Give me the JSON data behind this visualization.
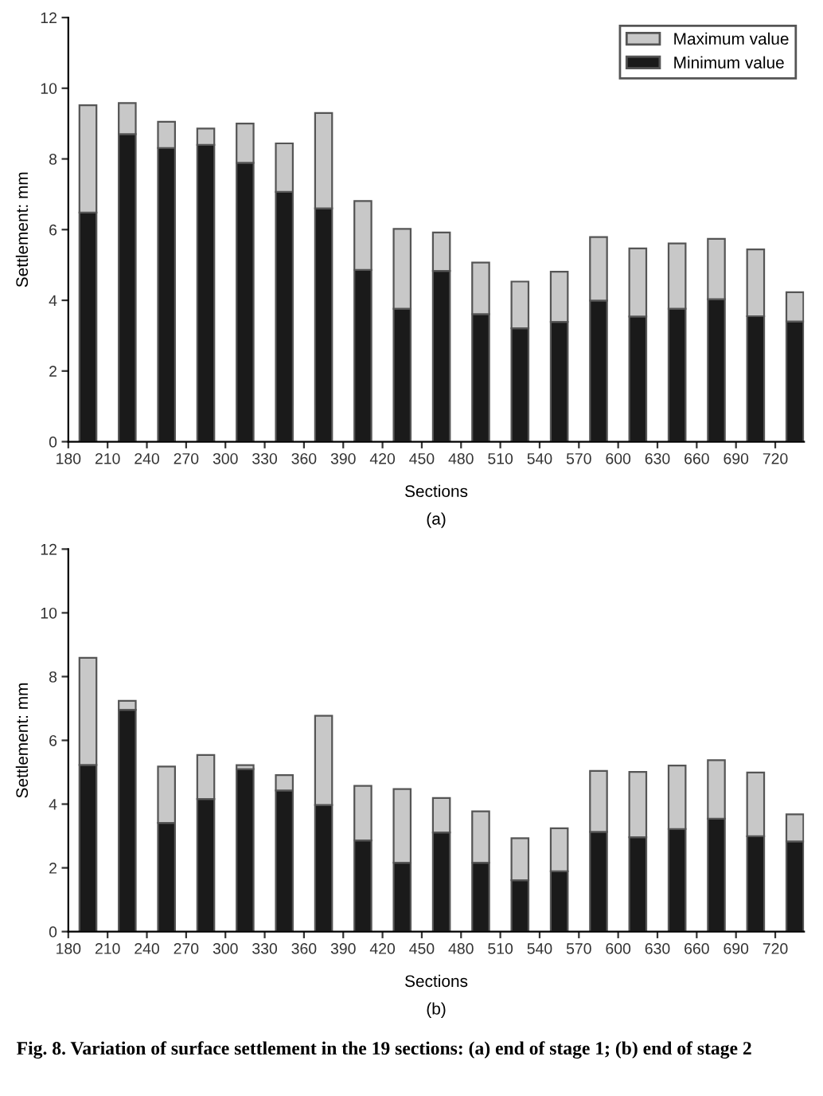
{
  "chart_data": [
    {
      "type": "bar",
      "stacked": true,
      "xlabel": "Sections",
      "ylabel": "Settlement: mm",
      "x": [
        195,
        225,
        255,
        285,
        315,
        345,
        375,
        405,
        435,
        465,
        495,
        525,
        555,
        585,
        615,
        645,
        675,
        705,
        735
      ],
      "series": [
        {
          "name": "Minimum value",
          "color": "#1a1a1a",
          "values": [
            6.48,
            8.7,
            8.31,
            8.4,
            7.89,
            7.07,
            6.6,
            4.86,
            3.76,
            4.83,
            3.61,
            3.21,
            3.39,
            3.99,
            3.54,
            3.76,
            4.03,
            3.55,
            3.4
          ]
        },
        {
          "name": "Maximum value",
          "color": "#c8c8c8",
          "values": [
            3.04,
            0.88,
            0.74,
            0.46,
            1.11,
            1.37,
            2.7,
            1.95,
            2.26,
            1.09,
            1.46,
            1.32,
            1.42,
            1.8,
            1.93,
            1.85,
            1.71,
            1.89,
            0.83
          ]
        }
      ],
      "xlim": [
        180,
        742
      ],
      "xticks": [
        180,
        210,
        240,
        270,
        300,
        330,
        360,
        390,
        420,
        450,
        480,
        510,
        540,
        570,
        600,
        630,
        660,
        690,
        720
      ],
      "ylim": [
        0,
        12
      ],
      "yticks": [
        0,
        2,
        4,
        6,
        8,
        10,
        12
      ],
      "grid": false,
      "legend": "top right",
      "annotations": [
        "(a)"
      ]
    },
    {
      "type": "bar",
      "stacked": true,
      "xlabel": "Sections",
      "ylabel": "Settlement: mm",
      "x": [
        195,
        225,
        255,
        285,
        315,
        345,
        375,
        405,
        435,
        465,
        495,
        525,
        555,
        585,
        615,
        645,
        675,
        705,
        735
      ],
      "series": [
        {
          "color": "#1a1a1a",
          "values": [
            5.23,
            6.96,
            3.41,
            4.16,
            5.1,
            4.43,
            3.97,
            2.86,
            2.16,
            3.11,
            2.16,
            1.61,
            1.89,
            3.13,
            2.96,
            3.22,
            3.54,
            2.99,
            2.83
          ]
        },
        {
          "color": "#c8c8c8",
          "values": [
            3.36,
            0.28,
            1.77,
            1.38,
            0.12,
            0.48,
            2.8,
            1.71,
            2.31,
            1.08,
            1.61,
            1.32,
            1.35,
            1.91,
            2.05,
            1.99,
            1.84,
            2.0,
            0.85
          ]
        }
      ],
      "xlim": [
        180,
        742
      ],
      "xticks": [
        180,
        210,
        240,
        270,
        300,
        330,
        360,
        390,
        420,
        450,
        480,
        510,
        540,
        570,
        600,
        630,
        660,
        690,
        720
      ],
      "ylim": [
        0,
        12
      ],
      "yticks": [
        0,
        2,
        4,
        6,
        8,
        10,
        12
      ],
      "grid": false,
      "annotations": [
        "(b)",
        "Fig. 8. Variation of surface settlement in the 19 sections: (a) end of stage 1; (b) end of stage 2"
      ]
    }
  ]
}
